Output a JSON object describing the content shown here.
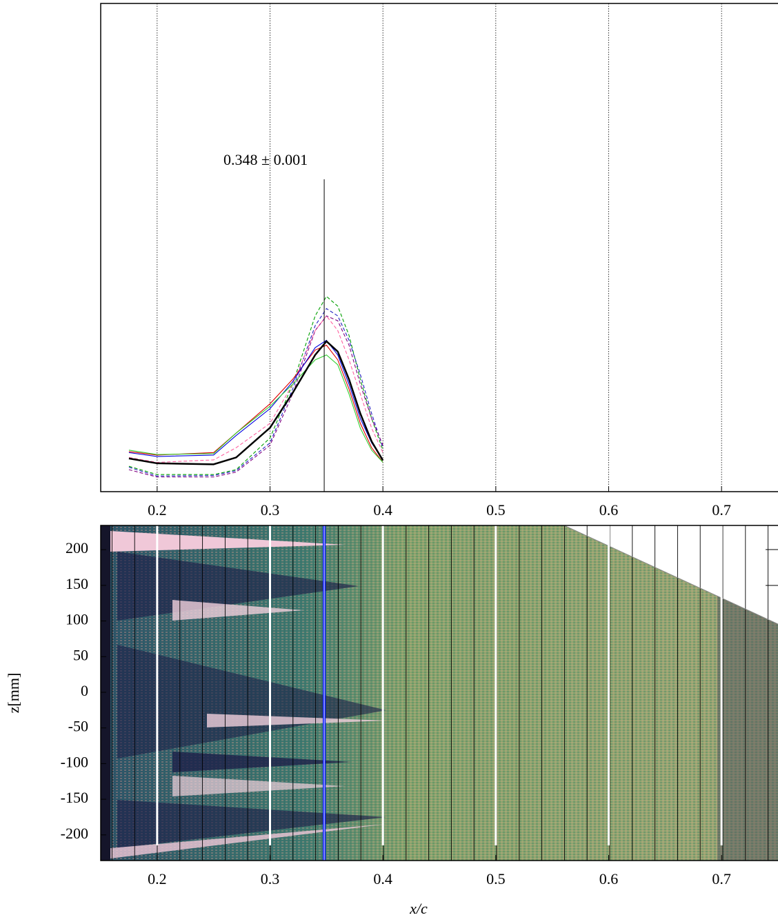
{
  "chart_data": [
    {
      "type": "line",
      "xlim": [
        0.15,
        0.75
      ],
      "xticks": [
        0.2,
        0.3,
        0.4,
        0.5,
        0.6,
        0.7
      ],
      "ylim": [
        0,
        1
      ],
      "grid": true,
      "annotation": {
        "text": "0.348 ± 0.001",
        "x": 0.348
      },
      "x": [
        0.175,
        0.2,
        0.25,
        0.27,
        0.3,
        0.32,
        0.34,
        0.35,
        0.36,
        0.37,
        0.38,
        0.39,
        0.4
      ],
      "series": [
        {
          "color": "#00a000",
          "dash": true,
          "values": [
            0.052,
            0.035,
            0.035,
            0.045,
            0.11,
            0.22,
            0.36,
            0.4,
            0.38,
            0.32,
            0.23,
            0.15,
            0.085
          ]
        },
        {
          "color": "#2020c0",
          "dash": true,
          "values": [
            0.05,
            0.032,
            0.033,
            0.043,
            0.1,
            0.21,
            0.34,
            0.375,
            0.36,
            0.31,
            0.24,
            0.16,
            0.09
          ]
        },
        {
          "color": "#800080",
          "dash": true,
          "values": [
            0.045,
            0.03,
            0.03,
            0.04,
            0.095,
            0.2,
            0.33,
            0.36,
            0.35,
            0.3,
            0.22,
            0.15,
            0.095
          ]
        },
        {
          "color": "#ff60a0",
          "dash": true,
          "values": [
            0.07,
            0.06,
            0.065,
            0.09,
            0.14,
            0.22,
            0.33,
            0.36,
            0.33,
            0.27,
            0.2,
            0.13,
            0.08
          ]
        },
        {
          "color": "#e00000",
          "dash": false,
          "values": [
            0.082,
            0.075,
            0.08,
            0.12,
            0.18,
            0.23,
            0.29,
            0.3,
            0.27,
            0.21,
            0.14,
            0.09,
            0.06
          ]
        },
        {
          "color": "#0000e0",
          "dash": false,
          "values": [
            0.08,
            0.072,
            0.075,
            0.115,
            0.17,
            0.225,
            0.295,
            0.31,
            0.28,
            0.22,
            0.15,
            0.1,
            0.065
          ]
        },
        {
          "color": "#30d030",
          "dash": false,
          "values": [
            0.085,
            0.076,
            0.078,
            0.12,
            0.175,
            0.22,
            0.27,
            0.28,
            0.26,
            0.2,
            0.13,
            0.085,
            0.06
          ]
        },
        {
          "color": "#000000",
          "dash": false,
          "width": 2.5,
          "values": [
            0.068,
            0.058,
            0.056,
            0.07,
            0.131,
            0.202,
            0.28,
            0.308,
            0.287,
            0.23,
            0.16,
            0.103,
            0.064
          ]
        }
      ]
    },
    {
      "type": "image",
      "xlim": [
        0.15,
        0.75
      ],
      "xticks": [
        0.2,
        0.3,
        0.4,
        0.5,
        0.6,
        0.7
      ],
      "ylim": [
        -236,
        234
      ],
      "yticks": [
        200,
        150,
        100,
        50,
        0,
        -50,
        -100,
        -150,
        -200
      ],
      "xlabel": "x/c",
      "ylabel": "z[mm]",
      "marker_x": 0.348
    }
  ]
}
